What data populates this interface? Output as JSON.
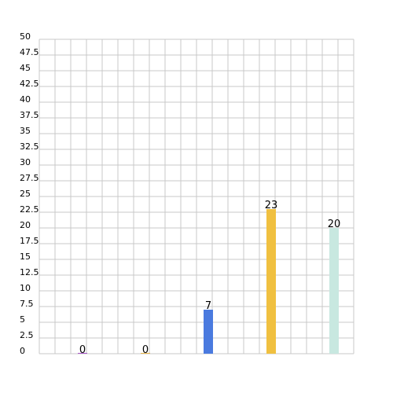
{
  "chart_data": {
    "type": "bar",
    "categories": [
      "",
      "",
      "",
      "",
      ""
    ],
    "values": [
      0,
      0,
      7,
      23,
      20
    ],
    "colors": [
      "#a855c8",
      "#e8b64a",
      "#4a7adf",
      "#f0c040",
      "#c8e8e0"
    ],
    "ylim": [
      0,
      50
    ],
    "y_ticks": [
      "0",
      "2.5",
      "5",
      "7.5",
      "10",
      "12.5",
      "15",
      "17.5",
      "20",
      "22.5",
      "25",
      "27.5",
      "30",
      "32.5",
      "35",
      "37.5",
      "40",
      "42.5",
      "45",
      "47.5",
      "50"
    ],
    "data_labels": [
      "0",
      "0",
      "7",
      "23",
      "20"
    ],
    "grid": true,
    "title": "",
    "xlabel": "",
    "ylabel": ""
  }
}
